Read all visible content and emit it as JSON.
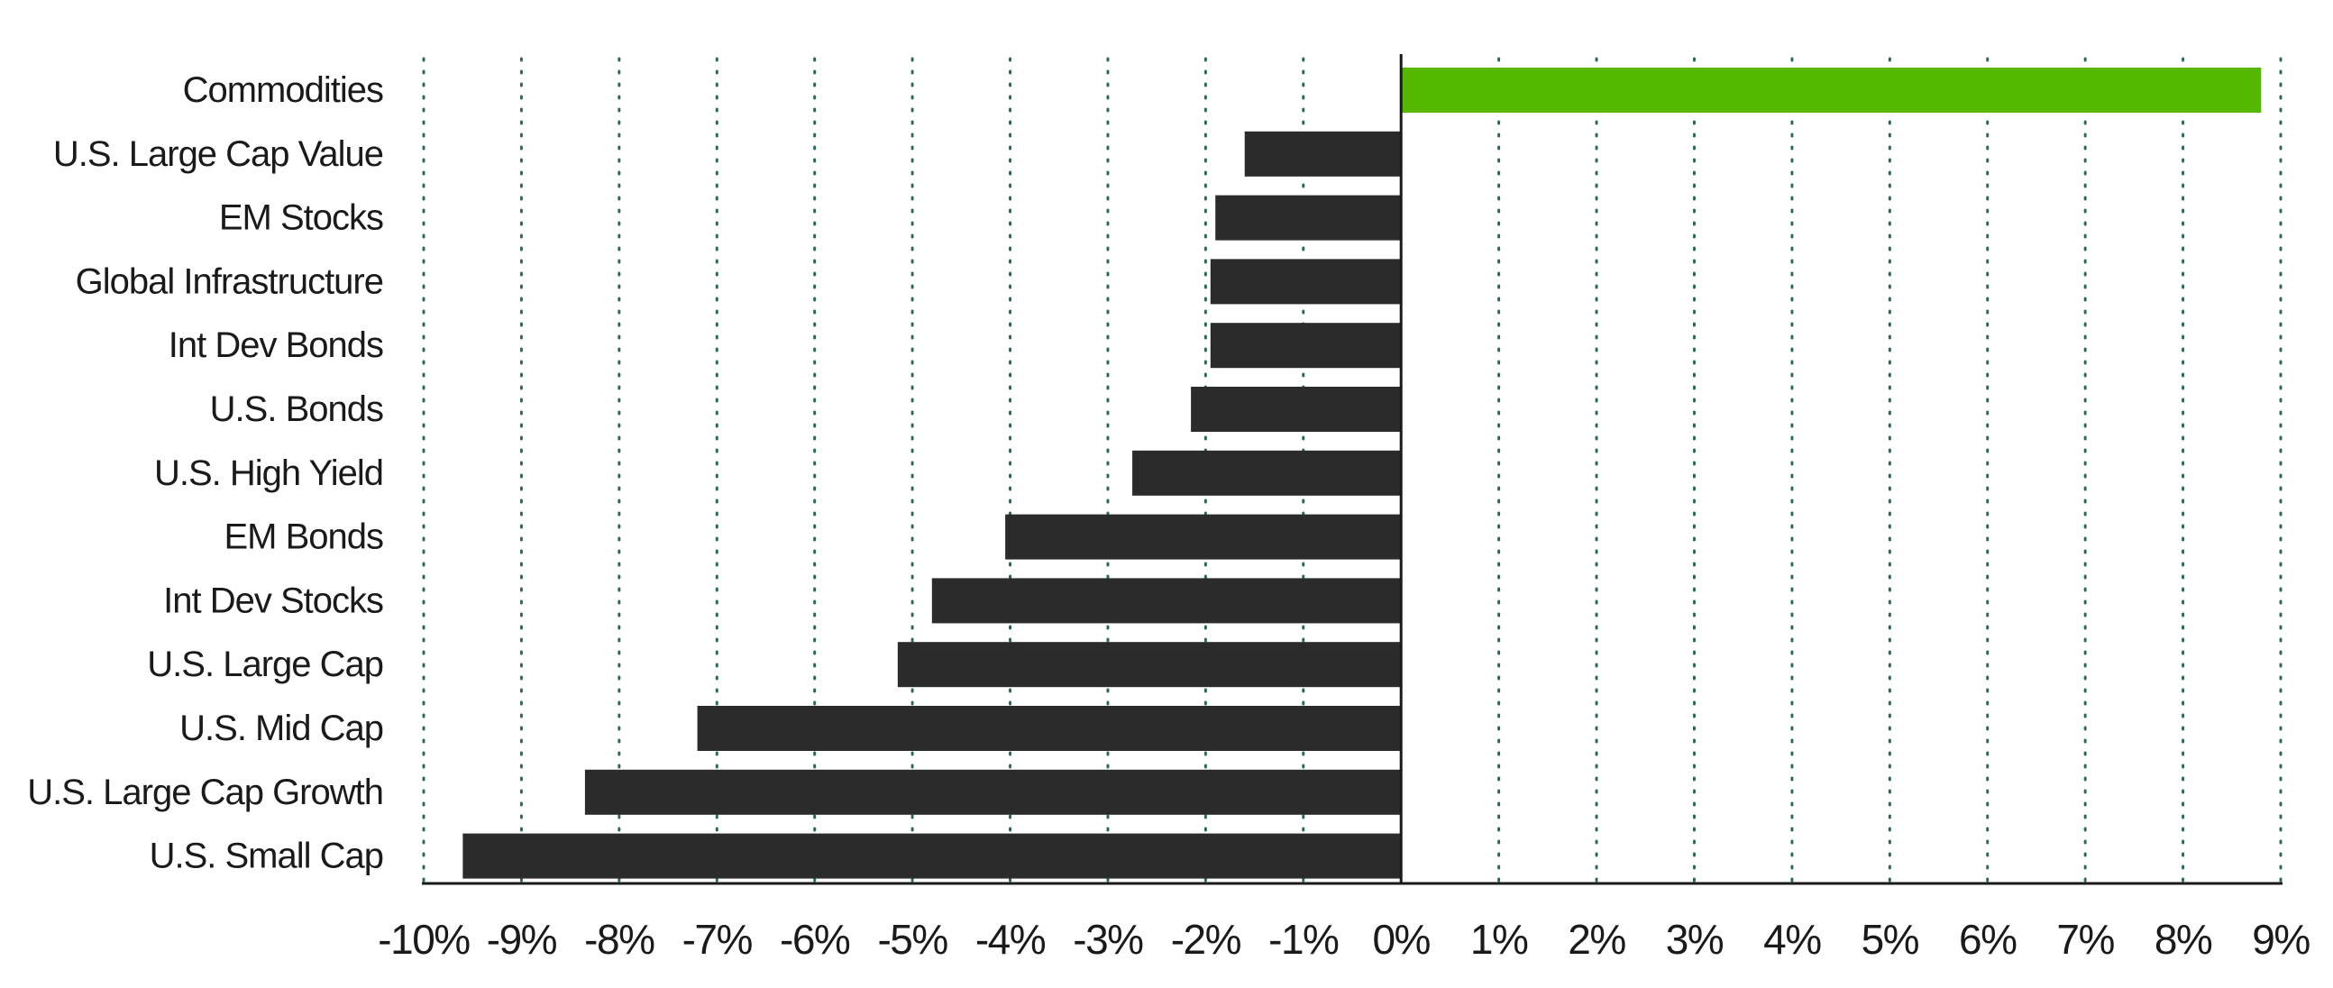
{
  "chart_data": {
    "type": "bar",
    "orientation": "horizontal",
    "categories": [
      "Commodities",
      "U.S. Large Cap Value",
      "EM Stocks",
      "Global Infrastructure",
      "Int Dev Bonds",
      "U.S. Bonds",
      "U.S. High Yield",
      "EM Bonds",
      "Int Dev Stocks",
      "U.S. Large Cap",
      "U.S. Mid Cap",
      "U.S. Large Cap Growth",
      "U.S. Small Cap"
    ],
    "values": [
      8.8,
      -1.6,
      -1.9,
      -1.95,
      -1.95,
      -2.15,
      -2.75,
      -4.05,
      -4.8,
      -5.15,
      -7.2,
      -8.35,
      -9.6
    ],
    "xlim": [
      -10,
      9
    ],
    "xticks": [
      -10,
      -9,
      -8,
      -7,
      -6,
      -5,
      -4,
      -3,
      -2,
      -1,
      0,
      1,
      2,
      3,
      4,
      5,
      6,
      7,
      8,
      9
    ],
    "tick_labels": [
      "-10%",
      "-9%",
      "-8%",
      "-7%",
      "-6%",
      "-5%",
      "-4%",
      "-3%",
      "-2%",
      "-1%",
      "0%",
      "1%",
      "2%",
      "3%",
      "4%",
      "5%",
      "6%",
      "7%",
      "8%",
      "9%"
    ],
    "grid": "vertical-dotted",
    "colors": {
      "positive": "#55b800",
      "negative": "#2b2b2b",
      "grid": "#2e6b4a",
      "axis": "#1a1a1a"
    },
    "title": "",
    "xlabel": "",
    "ylabel": ""
  }
}
